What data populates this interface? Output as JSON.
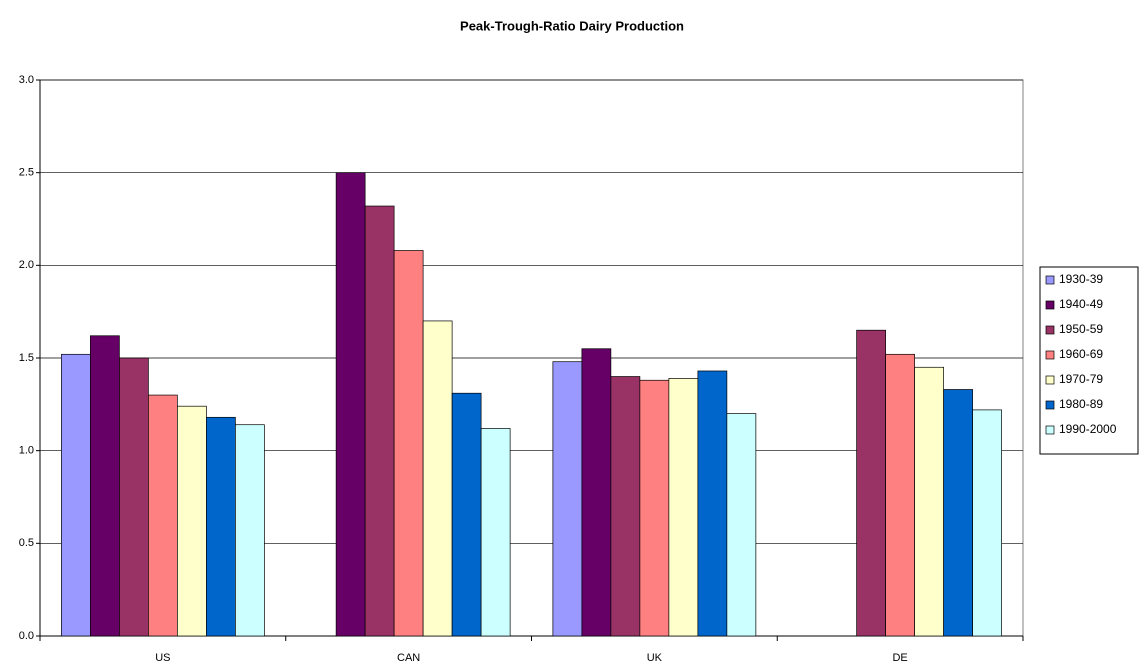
{
  "chart_data": {
    "type": "bar",
    "title": "Peak-Trough-Ratio Dairy Production",
    "categories": [
      "US",
      "CAN",
      "UK",
      "DE"
    ],
    "series": [
      {
        "name": "1930-39",
        "color": "#9999ff",
        "values": [
          1.52,
          null,
          1.48,
          null
        ]
      },
      {
        "name": "1940-49",
        "color": "#660066",
        "values": [
          1.62,
          2.5,
          1.55,
          null
        ]
      },
      {
        "name": "1950-59",
        "color": "#993366",
        "values": [
          1.5,
          2.32,
          1.4,
          1.65
        ]
      },
      {
        "name": "1960-69",
        "color": "#ff8080",
        "values": [
          1.3,
          2.08,
          1.38,
          1.52
        ]
      },
      {
        "name": "1970-79",
        "color": "#ffffcc",
        "values": [
          1.24,
          1.7,
          1.39,
          1.45
        ]
      },
      {
        "name": "1980-89",
        "color": "#0066cc",
        "values": [
          1.18,
          1.31,
          1.43,
          1.33
        ]
      },
      {
        "name": "1990-2000",
        "color": "#ccffff",
        "values": [
          1.14,
          1.12,
          1.2,
          1.22
        ]
      }
    ],
    "ylim": [
      0,
      3
    ],
    "yticks": [
      {
        "value": 0,
        "label": "0.0"
      },
      {
        "value": 0.5,
        "label": "0.5"
      },
      {
        "value": 1,
        "label": "1.0"
      },
      {
        "value": 1.5,
        "label": "1.5"
      },
      {
        "value": 2,
        "label": "2.0"
      },
      {
        "value": 2.5,
        "label": "2.5"
      },
      {
        "value": 3,
        "label": "3.0"
      }
    ],
    "grid": true,
    "legend": "right"
  }
}
